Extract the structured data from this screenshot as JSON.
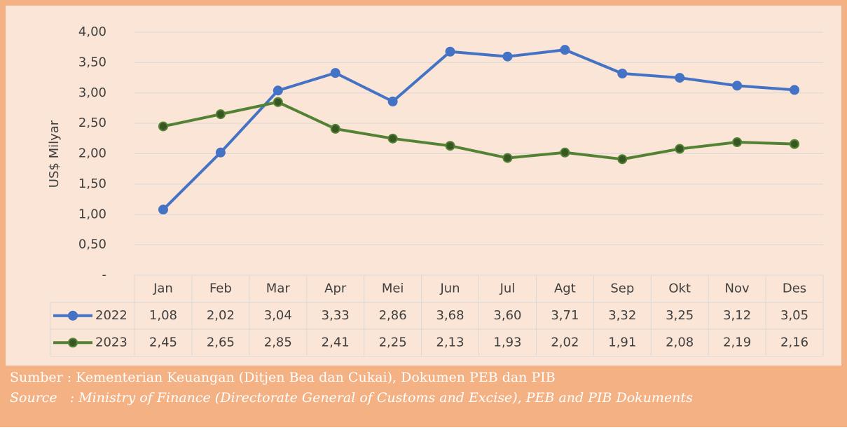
{
  "chart_data": {
    "type": "line",
    "y_label": "US$ Milyar",
    "categories": [
      "Jan",
      "Feb",
      "Mar",
      "Apr",
      "Mei",
      "Jun",
      "Jul",
      "Agt",
      "Sep",
      "Okt",
      "Nov",
      "Des"
    ],
    "series": [
      {
        "name": "2022",
        "color": "#4472c4",
        "values": [
          1.08,
          2.02,
          3.04,
          3.33,
          2.86,
          3.68,
          3.6,
          3.71,
          3.32,
          3.25,
          3.12,
          3.05
        ],
        "value_labels": [
          "1,08",
          "2,02",
          "3,04",
          "3,33",
          "2,86",
          "3,68",
          "3,60",
          "3,71",
          "3,32",
          "3,25",
          "3,12",
          "3,05"
        ]
      },
      {
        "name": "2023",
        "color": "#548235",
        "values": [
          2.45,
          2.65,
          2.85,
          2.41,
          2.25,
          2.13,
          1.93,
          2.02,
          1.91,
          2.08,
          2.19,
          2.16
        ],
        "value_labels": [
          "2,45",
          "2,65",
          "2,85",
          "2,41",
          "2,25",
          "2,13",
          "1,93",
          "2,02",
          "1,91",
          "2,08",
          "2,19",
          "2,16"
        ]
      }
    ],
    "ylim": [
      0,
      4
    ],
    "yticks": [
      {
        "value": 0,
        "label": "-"
      },
      {
        "value": 0.5,
        "label": "0,50"
      },
      {
        "value": 1,
        "label": "1,00"
      },
      {
        "value": 1.5,
        "label": "1,50"
      },
      {
        "value": 2,
        "label": "2,00"
      },
      {
        "value": 2.5,
        "label": "2,50"
      },
      {
        "value": 3,
        "label": "3,00"
      },
      {
        "value": 3.5,
        "label": "3,50"
      },
      {
        "value": 4,
        "label": "4,00"
      }
    ],
    "grid": true,
    "sources": [
      "Sumber : Kementerian Keuangan (Ditjen Bea dan Cukai), Dokumen PEB dan PIB",
      "Source   : Ministry of Finance (Directorate General of Customs and Excise), PEB and PIB Dokuments"
    ]
  }
}
